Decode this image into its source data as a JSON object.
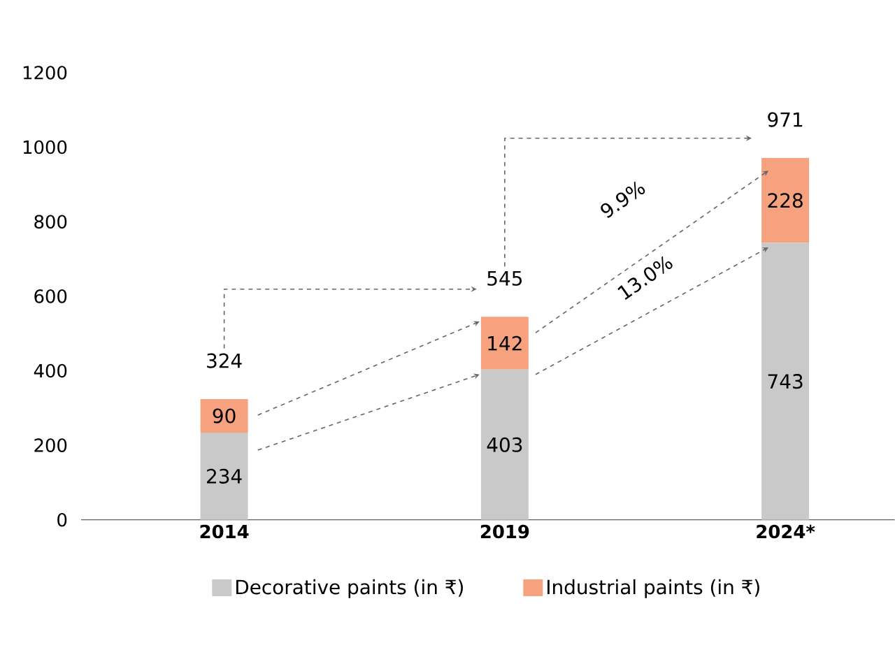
{
  "chart_data": {
    "type": "bar",
    "stacked": true,
    "categories": [
      "2014",
      "2019",
      "2024*"
    ],
    "series": [
      {
        "name": "Decorative paints (in ₹)",
        "color": "#c9c9c9",
        "values": [
          234,
          403,
          743
        ]
      },
      {
        "name": "Industrial paints (in ₹)",
        "color": "#f7a27f",
        "values": [
          90,
          142,
          228
        ]
      }
    ],
    "totals": [
      "324",
      "545",
      "971"
    ],
    "data_labels": true,
    "ylim": [
      0,
      1200
    ],
    "yticks": [
      0,
      200,
      400,
      600,
      800,
      1000,
      1200
    ],
    "annotations": [
      "9.9%",
      "13.0%"
    ],
    "legend": "bottom",
    "grid": false
  }
}
